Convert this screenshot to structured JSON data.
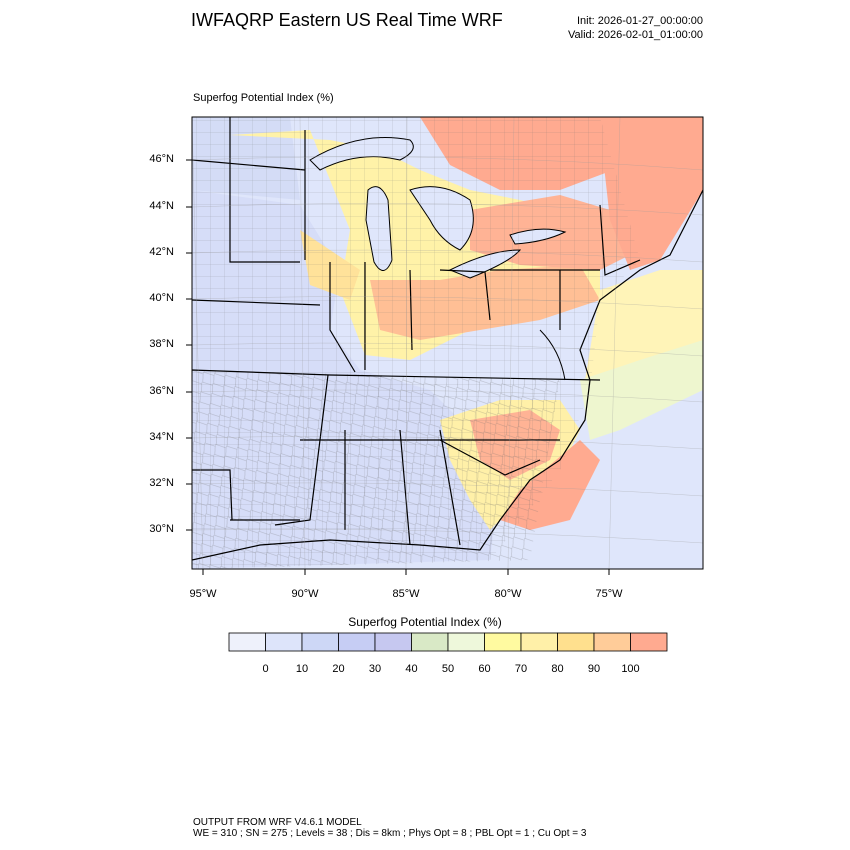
{
  "header": {
    "title": "IWFAQRP Eastern US Real Time WRF",
    "init": "Init: 2026-01-27_00:00:00",
    "valid": "Valid: 2026-02-01_01:00:00"
  },
  "map": {
    "subtitle": "Superfog Potential Index   (%)",
    "lat_labels": [
      "46°N",
      "44°N",
      "42°N",
      "40°N",
      "38°N",
      "36°N",
      "34°N",
      "32°N",
      "30°N"
    ],
    "lon_labels": [
      "95°W",
      "90°W",
      "85°W",
      "80°W",
      "75°W"
    ]
  },
  "legend": {
    "title": "Superfog Potential Index  (%)",
    "ticks": [
      "0",
      "10",
      "20",
      "30",
      "40",
      "50",
      "60",
      "70",
      "80",
      "90",
      "100"
    ],
    "colors": [
      "#eef1fb",
      "#dde4fa",
      "#cdd7f6",
      "#c6cdf4",
      "#c6c8f0",
      "#d9e9c6",
      "#eef8db",
      "#fffaa0",
      "#fff0a8",
      "#ffe08e",
      "#ffcc99",
      "#ffaa90"
    ]
  },
  "footer": {
    "line1": "OUTPUT FROM WRF V4.6.1 MODEL",
    "line2": "WE = 310 ; SN = 275 ; Levels = 38 ; Dis = 8km ; Phys Opt = 8 ; PBL Opt = 1 ; Cu Opt = 3"
  }
}
